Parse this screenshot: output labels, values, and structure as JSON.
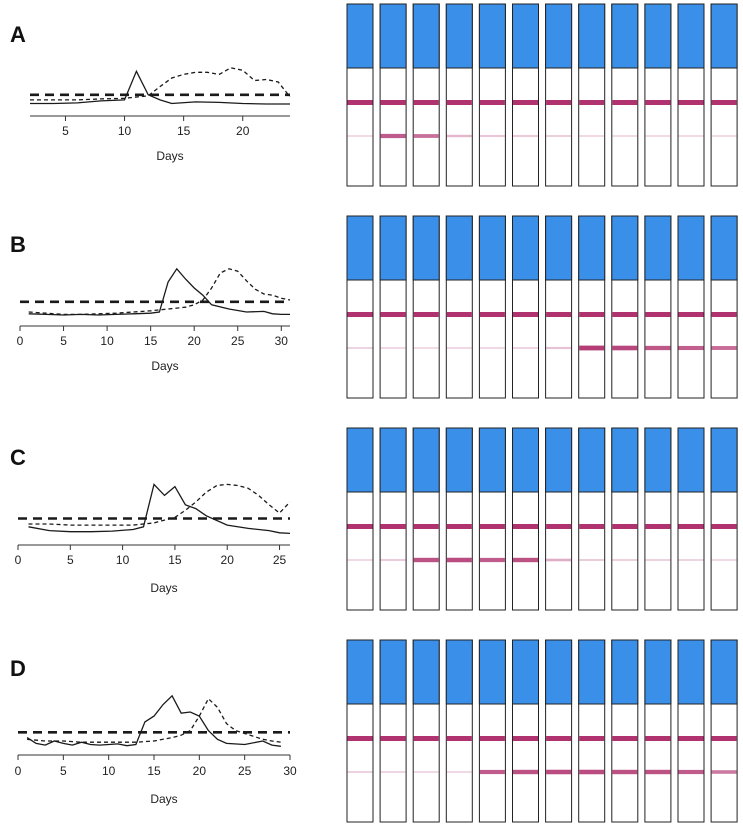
{
  "colors": {
    "strip_fill": "#3a8fe8",
    "strip_outline": "#222222",
    "band": "#b0336f",
    "series_solid": "#1a1a1a",
    "series_dashed": "#1a1a1a",
    "threshold": "#1a1a1a"
  },
  "chart_data": [
    {
      "type": "line",
      "panel_label": "A",
      "xlabel": "Days",
      "xlim": [
        2,
        24
      ],
      "xticks": [
        5,
        10,
        15,
        20
      ],
      "ylim": [
        0,
        1
      ],
      "threshold": 0.22,
      "series": [
        {
          "style": "solid",
          "x": [
            2,
            4,
            6,
            8,
            10,
            11,
            12,
            13,
            14,
            16,
            18,
            20,
            22,
            24
          ],
          "y": [
            0.05,
            0.05,
            0.06,
            0.1,
            0.12,
            0.68,
            0.22,
            0.12,
            0.05,
            0.08,
            0.07,
            0.05,
            0.04,
            0.04
          ]
        },
        {
          "style": "dashed",
          "x": [
            2,
            4,
            6,
            8,
            10,
            12,
            13,
            14,
            15,
            16,
            17,
            18,
            19,
            20,
            21,
            22,
            23,
            24
          ],
          "y": [
            0.12,
            0.12,
            0.12,
            0.14,
            0.15,
            0.2,
            0.38,
            0.55,
            0.62,
            0.66,
            0.66,
            0.62,
            0.75,
            0.7,
            0.5,
            0.52,
            0.47,
            0.18
          ]
        }
      ],
      "strips": {
        "count": 12,
        "control_intensity": [
          1,
          1,
          1,
          1,
          1,
          1,
          1,
          1,
          1,
          1,
          1,
          1
        ],
        "test_intensity": [
          0.1,
          0.8,
          0.7,
          0.35,
          0.28,
          0.26,
          0.22,
          0.12,
          0.1,
          0.1,
          0.1,
          0.1
        ]
      }
    },
    {
      "type": "line",
      "panel_label": "B",
      "xlabel": "Days",
      "xlim": [
        0,
        31
      ],
      "xticks": [
        0,
        5,
        10,
        15,
        20,
        25,
        30
      ],
      "ylim": [
        0,
        1
      ],
      "threshold": 0.27,
      "series": [
        {
          "style": "solid",
          "x": [
            1,
            3,
            5,
            7,
            9,
            11,
            13,
            15,
            16,
            17,
            18,
            19,
            20,
            21,
            22,
            24,
            26,
            28,
            29,
            30,
            31
          ],
          "y": [
            0.07,
            0.06,
            0.05,
            0.06,
            0.05,
            0.06,
            0.07,
            0.08,
            0.1,
            0.6,
            0.82,
            0.65,
            0.5,
            0.38,
            0.22,
            0.15,
            0.1,
            0.11,
            0.07,
            0.06,
            0.06
          ]
        },
        {
          "style": "dashed",
          "x": [
            1,
            3,
            5,
            7,
            9,
            11,
            13,
            15,
            17,
            19,
            20,
            21,
            22,
            23,
            24,
            25,
            26,
            27,
            28,
            29,
            30,
            31
          ],
          "y": [
            0.1,
            0.08,
            0.06,
            0.06,
            0.07,
            0.08,
            0.1,
            0.12,
            0.15,
            0.18,
            0.22,
            0.3,
            0.5,
            0.75,
            0.82,
            0.78,
            0.62,
            0.48,
            0.4,
            0.38,
            0.33,
            0.3
          ]
        }
      ],
      "strips": {
        "count": 12,
        "control_intensity": [
          1,
          1,
          1,
          1,
          1,
          1,
          1,
          1,
          1,
          1,
          1,
          1
        ],
        "test_intensity": [
          0.18,
          0.12,
          0.1,
          0.12,
          0.12,
          0.18,
          0.3,
          0.95,
          0.9,
          0.82,
          0.78,
          0.72
        ]
      }
    },
    {
      "type": "line",
      "panel_label": "C",
      "xlabel": "Days",
      "xlim": [
        0,
        26
      ],
      "xticks": [
        0,
        5,
        10,
        15,
        20,
        25
      ],
      "ylim": [
        0,
        1
      ],
      "threshold": 0.3,
      "series": [
        {
          "style": "solid",
          "x": [
            1,
            3,
            5,
            7,
            9,
            11,
            12,
            13,
            14,
            15,
            16,
            17,
            18,
            20,
            22,
            24,
            25,
            26
          ],
          "y": [
            0.15,
            0.08,
            0.06,
            0.06,
            0.07,
            0.1,
            0.15,
            0.92,
            0.72,
            0.88,
            0.55,
            0.48,
            0.35,
            0.18,
            0.12,
            0.08,
            0.04,
            0.03
          ]
        },
        {
          "style": "dashed",
          "x": [
            1,
            3,
            5,
            7,
            9,
            11,
            13,
            15,
            16,
            17,
            18,
            19,
            20,
            21,
            22,
            23,
            24,
            25,
            26
          ],
          "y": [
            0.2,
            0.2,
            0.18,
            0.18,
            0.18,
            0.18,
            0.22,
            0.32,
            0.45,
            0.6,
            0.78,
            0.9,
            0.92,
            0.9,
            0.85,
            0.72,
            0.55,
            0.4,
            0.6
          ]
        }
      ],
      "strips": {
        "count": 12,
        "control_intensity": [
          1,
          1,
          1,
          1,
          1,
          1,
          1,
          1,
          1,
          1,
          1,
          1
        ],
        "test_intensity": [
          0.12,
          0.25,
          0.85,
          0.88,
          0.8,
          0.85,
          0.4,
          0.25,
          0.2,
          0.2,
          0.18,
          0.12
        ]
      }
    },
    {
      "type": "line",
      "panel_label": "D",
      "xlabel": "Days",
      "xlim": [
        0,
        30
      ],
      "xticks": [
        0,
        5,
        10,
        15,
        20,
        25,
        30
      ],
      "ylim": [
        0,
        1
      ],
      "threshold": 0.27,
      "series": [
        {
          "style": "solid",
          "x": [
            1,
            2,
            3,
            4,
            5,
            6,
            7,
            8,
            9,
            10,
            11,
            12,
            13,
            14,
            15,
            16,
            17,
            18,
            19,
            20,
            21,
            22,
            23,
            25,
            27,
            28,
            29
          ],
          "y": [
            0.18,
            0.08,
            0.05,
            0.12,
            0.08,
            0.05,
            0.1,
            0.06,
            0.05,
            0.06,
            0.07,
            0.04,
            0.06,
            0.45,
            0.55,
            0.75,
            0.9,
            0.6,
            0.62,
            0.55,
            0.3,
            0.15,
            0.08,
            0.06,
            0.12,
            0.05,
            0.03
          ]
        },
        {
          "style": "dashed",
          "x": [
            1,
            3,
            5,
            7,
            9,
            11,
            13,
            15,
            17,
            18,
            19,
            20,
            21,
            22,
            23,
            24,
            25,
            26,
            27,
            28,
            29
          ],
          "y": [
            0.15,
            0.12,
            0.12,
            0.1,
            0.1,
            0.1,
            0.1,
            0.12,
            0.18,
            0.22,
            0.3,
            0.55,
            0.85,
            0.7,
            0.42,
            0.3,
            0.25,
            0.2,
            0.15,
            0.12,
            0.1
          ]
        }
      ],
      "strips": {
        "count": 12,
        "control_intensity": [
          1,
          1,
          1,
          1,
          1,
          1,
          1,
          1,
          1,
          1,
          1,
          1
        ],
        "test_intensity": [
          0.2,
          0.15,
          0.12,
          0.12,
          0.8,
          0.85,
          0.88,
          0.88,
          0.85,
          0.85,
          0.8,
          0.65
        ]
      }
    }
  ]
}
